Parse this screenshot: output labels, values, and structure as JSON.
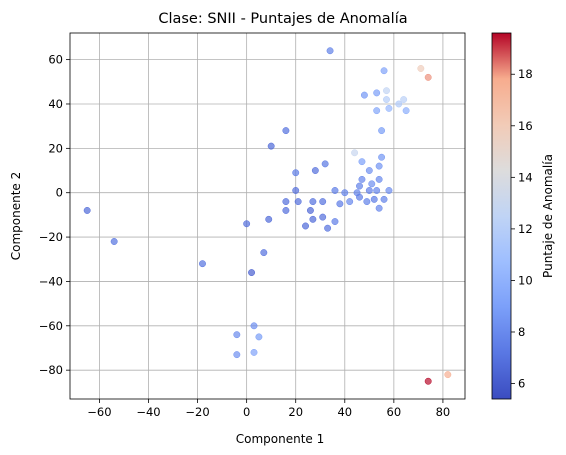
{
  "chart_data": {
    "type": "scatter",
    "title": "Clase: SNII - Puntajes de Anomalía",
    "xlabel": "Componente 1",
    "ylabel": "Componente 2",
    "xlim": [
      -72,
      89
    ],
    "ylim": [
      -93,
      72
    ],
    "xticks": [
      -60,
      -40,
      -20,
      0,
      20,
      40,
      60,
      80
    ],
    "yticks": [
      -80,
      -60,
      -40,
      -20,
      0,
      20,
      40,
      60
    ],
    "grid": true,
    "colormap": "coolwarm",
    "colorbar": {
      "label": "Puntaje de Anomalía",
      "range": [
        5.4,
        19.6
      ],
      "ticks": [
        6,
        8,
        10,
        12,
        14,
        16,
        18
      ]
    },
    "points": [
      {
        "x": -65,
        "y": -8,
        "score": 6.6
      },
      {
        "x": -54,
        "y": -22,
        "score": 7.0
      },
      {
        "x": -18,
        "y": -32,
        "score": 7.0
      },
      {
        "x": 16,
        "y": 28,
        "score": 6.9
      },
      {
        "x": 10,
        "y": 21,
        "score": 6.6
      },
      {
        "x": 34,
        "y": 64,
        "score": 7.6
      },
      {
        "x": 0,
        "y": -14,
        "score": 6.8
      },
      {
        "x": 2,
        "y": -36,
        "score": 6.2
      },
      {
        "x": 7,
        "y": -27,
        "score": 6.9
      },
      {
        "x": 9,
        "y": -12,
        "score": 6.6
      },
      {
        "x": 16,
        "y": -4,
        "score": 6.8
      },
      {
        "x": 16,
        "y": -8,
        "score": 6.8
      },
      {
        "x": 20,
        "y": 1,
        "score": 6.8
      },
      {
        "x": 20,
        "y": 9,
        "score": 7.4
      },
      {
        "x": 21,
        "y": -4,
        "score": 6.8
      },
      {
        "x": 24,
        "y": -15,
        "score": 6.6
      },
      {
        "x": 26,
        "y": -8,
        "score": 6.5
      },
      {
        "x": 27,
        "y": -4,
        "score": 6.9
      },
      {
        "x": 27,
        "y": -12,
        "score": 6.6
      },
      {
        "x": 28,
        "y": 10,
        "score": 6.8
      },
      {
        "x": 31,
        "y": -4,
        "score": 6.9
      },
      {
        "x": 31,
        "y": -11,
        "score": 6.8
      },
      {
        "x": 32,
        "y": 13,
        "score": 7.2
      },
      {
        "x": 33,
        "y": -16,
        "score": 6.9
      },
      {
        "x": 36,
        "y": 1,
        "score": 7.4
      },
      {
        "x": 36,
        "y": -13,
        "score": 7.5
      },
      {
        "x": 38,
        "y": -5,
        "score": 7.3
      },
      {
        "x": 40,
        "y": 0,
        "score": 7.7
      },
      {
        "x": 42,
        "y": -4,
        "score": 7.9
      },
      {
        "x": 44,
        "y": 18,
        "score": 12.9
      },
      {
        "x": 45,
        "y": 0,
        "score": 7.7
      },
      {
        "x": 46,
        "y": 3,
        "score": 7.6
      },
      {
        "x": 46,
        "y": -2,
        "score": 7.4
      },
      {
        "x": 47,
        "y": 14,
        "score": 9.0
      },
      {
        "x": 47,
        "y": 6,
        "score": 7.8
      },
      {
        "x": 48,
        "y": 44,
        "score": 8.6
      },
      {
        "x": 49,
        "y": -4,
        "score": 7.6
      },
      {
        "x": 50,
        "y": 1,
        "score": 7.5
      },
      {
        "x": 50,
        "y": 10,
        "score": 8.2
      },
      {
        "x": 51,
        "y": 4,
        "score": 8.2
      },
      {
        "x": 52,
        "y": -3,
        "score": 7.3
      },
      {
        "x": 53,
        "y": 1,
        "score": 7.8
      },
      {
        "x": 53,
        "y": 37,
        "score": 9.3
      },
      {
        "x": 53,
        "y": 45,
        "score": 8.9
      },
      {
        "x": 54,
        "y": 6,
        "score": 7.9
      },
      {
        "x": 54,
        "y": 12,
        "score": 8.4
      },
      {
        "x": 54,
        "y": -7,
        "score": 7.8
      },
      {
        "x": 55,
        "y": 28,
        "score": 8.8
      },
      {
        "x": 55,
        "y": 16,
        "score": 8.5
      },
      {
        "x": 56,
        "y": 55,
        "score": 9.2
      },
      {
        "x": 56,
        "y": -3,
        "score": 7.6
      },
      {
        "x": 57,
        "y": 42,
        "score": 11.9
      },
      {
        "x": 57,
        "y": 46,
        "score": 12.6
      },
      {
        "x": 58,
        "y": 1,
        "score": 8.1
      },
      {
        "x": 58,
        "y": 38,
        "score": 10.3
      },
      {
        "x": 62,
        "y": 40,
        "score": 11.7
      },
      {
        "x": 64,
        "y": 42,
        "score": 12.2
      },
      {
        "x": 65,
        "y": 37,
        "score": 9.8
      },
      {
        "x": 71,
        "y": 56,
        "score": 15.8
      },
      {
        "x": 74,
        "y": 52,
        "score": 18.1
      },
      {
        "x": -4,
        "y": -64,
        "score": 8.0
      },
      {
        "x": -4,
        "y": -73,
        "score": 8.3
      },
      {
        "x": 3,
        "y": -60,
        "score": 8.2
      },
      {
        "x": 5,
        "y": -65,
        "score": 8.8
      },
      {
        "x": 3,
        "y": -72,
        "score": 9.2
      },
      {
        "x": 74,
        "y": -85,
        "score": 19.5
      },
      {
        "x": 82,
        "y": -82,
        "score": 17.7
      }
    ]
  }
}
